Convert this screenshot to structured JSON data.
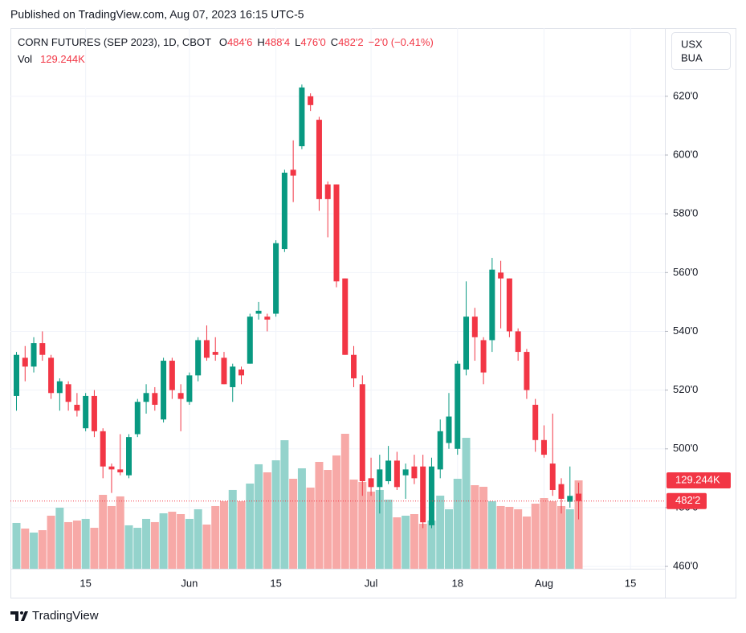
{
  "header": {
    "published": "Published on TradingView.com, Aug 07, 2023 16:15 UTC-5"
  },
  "legend": {
    "symbol": "CORN FUTURES (SEP 2023), 1D, CBOT",
    "open_label": "O",
    "open": "484'6",
    "high_label": "H",
    "high": "488'4",
    "low_label": "L",
    "low": "476'0",
    "close_label": "C",
    "close": "482'2",
    "change": "−2'0 (−0.41%)",
    "volume_label": "Vol",
    "volume": "129.244K"
  },
  "unit": [
    "USX",
    "BUA"
  ],
  "footer": {
    "brand": "TradingView"
  },
  "chart_data": {
    "type": "candlestick",
    "categories": [
      null,
      null,
      null,
      null,
      null,
      null,
      null,
      null,
      "15",
      null,
      null,
      null,
      null,
      null,
      null,
      null,
      null,
      null,
      null,
      null,
      "Jun",
      null,
      null,
      null,
      null,
      null,
      null,
      null,
      null,
      null,
      "15",
      null,
      null,
      null,
      null,
      null,
      null,
      null,
      null,
      null,
      null,
      "Jul",
      null,
      null,
      null,
      null,
      null,
      null,
      null,
      null,
      null,
      "18",
      null,
      null,
      null,
      null,
      null,
      null,
      null,
      null,
      null,
      "Aug",
      null,
      null,
      null,
      null,
      null,
      null,
      null,
      null,
      null,
      "15"
    ],
    "series": [
      {
        "name": "open",
        "values": [
          518,
          531,
          528,
          536,
          531,
          519,
          522,
          515,
          507,
          518,
          506,
          494,
          493,
          491,
          505,
          516,
          519,
          510,
          530,
          519,
          516,
          525,
          537,
          533,
          531,
          521,
          527,
          529,
          546,
          545,
          546,
          568,
          595,
          603,
          620,
          612,
          590,
          590,
          558,
          532,
          522,
          490,
          487,
          489,
          496,
          491,
          494,
          494,
          474,
          493,
          502,
          500,
          527,
          545,
          537,
          537,
          560,
          558,
          540,
          533,
          515,
          503,
          495,
          488,
          482,
          484.75,
          null,
          null,
          null,
          null,
          null,
          null
        ]
      },
      {
        "name": "high",
        "values": [
          533,
          535,
          538,
          540,
          532,
          524,
          523,
          519,
          519,
          520,
          507,
          495,
          505,
          505,
          517,
          522,
          521,
          531,
          531,
          522,
          526,
          538,
          542,
          538,
          533,
          529,
          528,
          546,
          550,
          546,
          571,
          595,
          605,
          624,
          621,
          613,
          591,
          590,
          558,
          535,
          525,
          497,
          498,
          501,
          499,
          495,
          498,
          498,
          497,
          510,
          519,
          530,
          557,
          548,
          538,
          565,
          564,
          558,
          541,
          534,
          517,
          508,
          512,
          490,
          494,
          488.5,
          null,
          null,
          null,
          null,
          null,
          null
        ]
      },
      {
        "name": "low",
        "values": [
          513,
          523,
          526,
          530,
          517,
          513,
          513,
          511,
          506,
          504,
          490,
          485,
          491,
          490,
          504,
          512,
          513,
          509,
          517,
          506,
          515,
          523,
          530,
          530,
          522,
          516,
          522,
          529,
          544,
          540,
          545,
          567,
          584,
          602,
          615,
          581,
          572,
          555,
          532,
          521,
          484,
          484,
          478,
          488,
          486,
          483,
          488,
          473,
          473,
          490,
          500,
          498,
          525,
          530,
          522,
          533,
          541,
          538,
          530,
          517,
          499,
          497,
          484,
          478,
          480,
          476,
          null,
          null,
          null,
          null,
          null,
          null
        ]
      },
      {
        "name": "close",
        "values": [
          532,
          528,
          536,
          532,
          519,
          523,
          516,
          513,
          518,
          506,
          494,
          493,
          492,
          504,
          516,
          519,
          515,
          530,
          520,
          517,
          525,
          537,
          531,
          532,
          522,
          528,
          525,
          545,
          547,
          544,
          570,
          594,
          593,
          623,
          617,
          585,
          585,
          557,
          532,
          524,
          489,
          487,
          493,
          496,
          487,
          493,
          490,
          475,
          494,
          506,
          511,
          529,
          545,
          538,
          526,
          561,
          558,
          540,
          533,
          520,
          503,
          498,
          486,
          483,
          484,
          482.25,
          null,
          null,
          null,
          null,
          null,
          null
        ],
        "value_labels": [
          null,
          null,
          null,
          null,
          null,
          null,
          null,
          null,
          null,
          null,
          null,
          null,
          null,
          null,
          null,
          null,
          null,
          null,
          null,
          null,
          null,
          null,
          null,
          null,
          null,
          null,
          null,
          null,
          null,
          null,
          null,
          null,
          null,
          null,
          null,
          null,
          null,
          null,
          null,
          null,
          null,
          null,
          null,
          null,
          null,
          null,
          null,
          null,
          null,
          null,
          null,
          null,
          null,
          null,
          null,
          null,
          null,
          null,
          null,
          null,
          null,
          null,
          null,
          null,
          null,
          "482'2",
          null,
          null,
          null,
          null,
          null,
          null
        ]
      },
      {
        "name": "volume",
        "values": [
          67000,
          58800,
          52900,
          56400,
          77600,
          89300,
          68200,
          70500,
          72900,
          59900,
          108100,
          91700,
          105800,
          63500,
          59900,
          72900,
          68200,
          81100,
          83400,
          79900,
          72900,
          87000,
          64600,
          91700,
          98700,
          115200,
          98700,
          124600,
          152800,
          141000,
          158600,
          188000,
          131600,
          146900,
          118700,
          156300,
          144500,
          165700,
          197400,
          130400,
          126900,
          112800,
          115200,
          101100,
          75200,
          77600,
          79900,
          65800,
          70500,
          106900,
          87000,
          131600,
          191500,
          122200,
          119900,
          98700,
          91700,
          90500,
          87000,
          76400,
          95200,
          103400,
          98700,
          91700,
          87000,
          129244,
          null,
          null,
          null,
          null,
          null,
          null
        ],
        "value_labels": [
          null,
          null,
          null,
          null,
          null,
          null,
          null,
          null,
          null,
          null,
          null,
          null,
          null,
          null,
          null,
          null,
          null,
          null,
          null,
          null,
          null,
          null,
          null,
          null,
          null,
          null,
          null,
          null,
          null,
          null,
          null,
          null,
          null,
          null,
          null,
          null,
          null,
          null,
          null,
          null,
          null,
          null,
          null,
          null,
          null,
          null,
          null,
          null,
          null,
          null,
          null,
          null,
          null,
          null,
          null,
          null,
          null,
          null,
          null,
          null,
          null,
          null,
          null,
          null,
          null,
          "129.244K",
          null,
          null,
          null,
          null,
          null,
          null
        ]
      }
    ],
    "up_color": "#089981",
    "down_color": "#f23645",
    "volume_up_color": "#94d3cc",
    "volume_down_color": "#f7a9a7",
    "ylim": [
      459.2,
      643.2
    ],
    "yticks": [
      {
        "value": 460,
        "label": "460'0"
      },
      {
        "value": 480,
        "label": "480'0"
      },
      {
        "value": 500,
        "label": "500'0"
      },
      {
        "value": 520,
        "label": "520'0"
      },
      {
        "value": 540,
        "label": "540'0"
      },
      {
        "value": 560,
        "label": "560'0"
      },
      {
        "value": 580,
        "label": "580'0"
      },
      {
        "value": 600,
        "label": "600'0"
      },
      {
        "value": 620,
        "label": "620'0"
      }
    ],
    "grid": true
  }
}
